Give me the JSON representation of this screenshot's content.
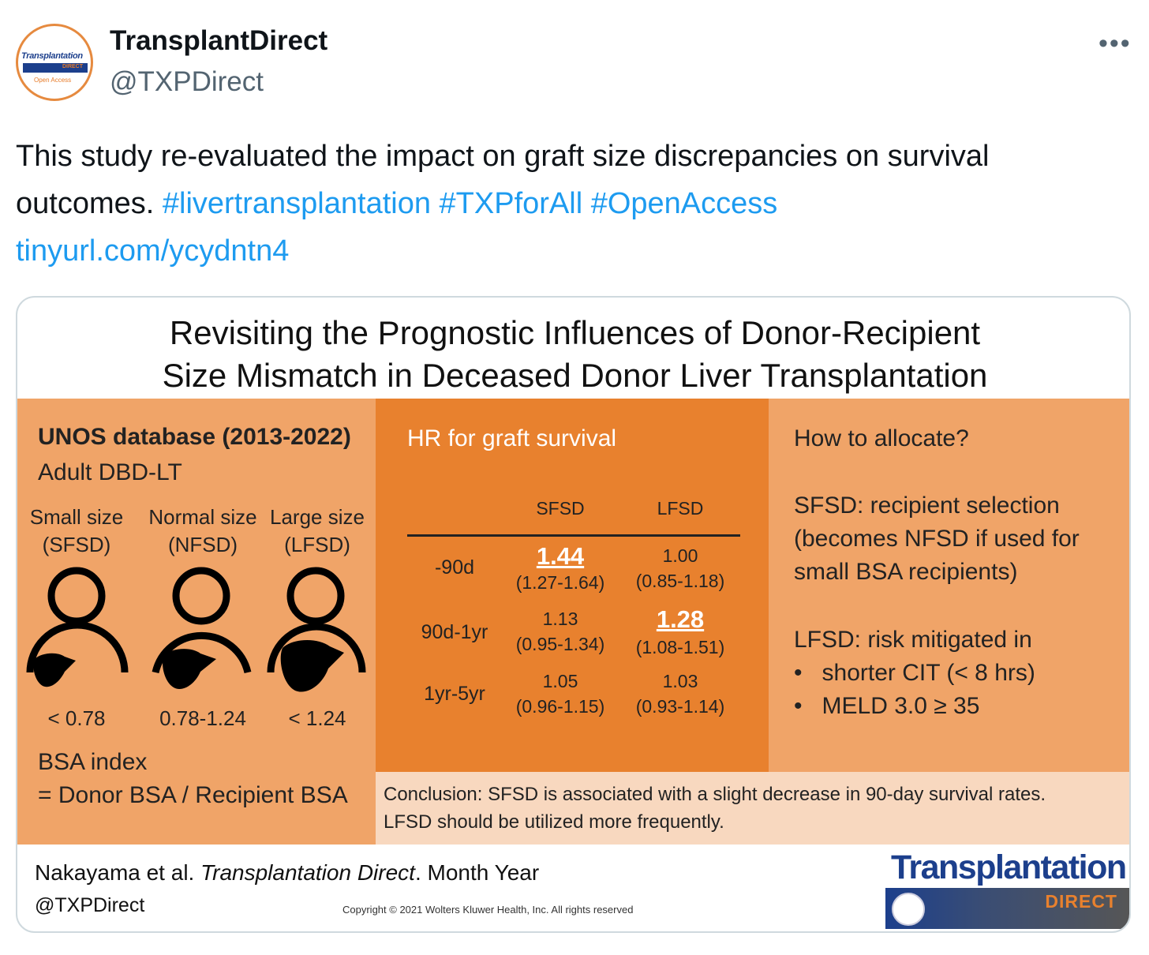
{
  "profile": {
    "name": "TransplantDirect",
    "handle": "@TXPDirect",
    "more_label": "•••",
    "avatar": {
      "line1": "Transplantation",
      "line2": "DIRECT",
      "line3": "Open Access"
    }
  },
  "tweet": {
    "text": "This study re-evaluated the impact on graft size discrepancies on survival outcomes.",
    "hashtags": [
      "#livertransplantation",
      "#TXPforAll",
      "#OpenAccess"
    ],
    "link": "tinyurl.com/ycydntn4"
  },
  "card": {
    "title_line1": "Revisiting the Prognostic Influences of Donor-Recipient",
    "title_line2": "Size Mismatch in Deceased Donor Liver Transplantation",
    "left": {
      "heading": "UNOS database (2013-2022)",
      "sub": "Adult DBD-LT",
      "groups": [
        {
          "label": "Small size",
          "abbr": "(SFSD)",
          "range": "< 0.78"
        },
        {
          "label": "Normal size",
          "abbr": "(NFSD)",
          "range": "0.78-1.24"
        },
        {
          "label": "Large size",
          "abbr": "(LFSD)",
          "range": "< 1.24"
        }
      ],
      "bsa_line1": "BSA index",
      "bsa_line2": "= Donor BSA / Recipient BSA"
    },
    "middle": {
      "heading": "HR for graft survival",
      "col1": "SFSD",
      "col2": "LFSD",
      "rows": [
        {
          "label": "-90d",
          "sfsd": "1.44",
          "sfsd_ci": "(1.27-1.64)",
          "lfsd": "1.00",
          "lfsd_ci": "(0.85-1.18)"
        },
        {
          "label": "90d-1yr",
          "sfsd": "1.13",
          "sfsd_ci": "(0.95-1.34)",
          "lfsd": "1.28",
          "lfsd_ci": "(1.08-1.51)"
        },
        {
          "label": "1yr-5yr",
          "sfsd": "1.05",
          "sfsd_ci": "(0.96-1.15)",
          "lfsd": "1.03",
          "lfsd_ci": "(0.93-1.14)"
        }
      ]
    },
    "right": {
      "q": "How to allocate?",
      "s1": "SFSD: recipient selection",
      "s2": "(becomes NFSD if used for",
      "s3": "small BSA recipients)",
      "l1": "LFSD: risk mitigated in",
      "b1": "shorter CIT (< 8 hrs)",
      "b2": "MELD 3.0 ≥ 35"
    },
    "conclusion1": "Conclusion: SFSD is associated with a slight decrease in 90-day survival rates.",
    "conclusion2": "LFSD should be utilized more frequently.",
    "footer": {
      "author": "Nakayama et al.",
      "journal": "Transplantation Direct",
      "date": ". Month Year",
      "handle": "@TXPDirect",
      "copyright": "Copyright © 2021  Wolters Kluwer Health, Inc. All rights reserved",
      "logo": "Transplantation",
      "logo_sub": "DIRECT"
    }
  },
  "colors": {
    "link": "#1d9bf0",
    "orange_dark": "#e8812e",
    "orange_light": "#f0a468",
    "peach": "#f8d8bf"
  }
}
